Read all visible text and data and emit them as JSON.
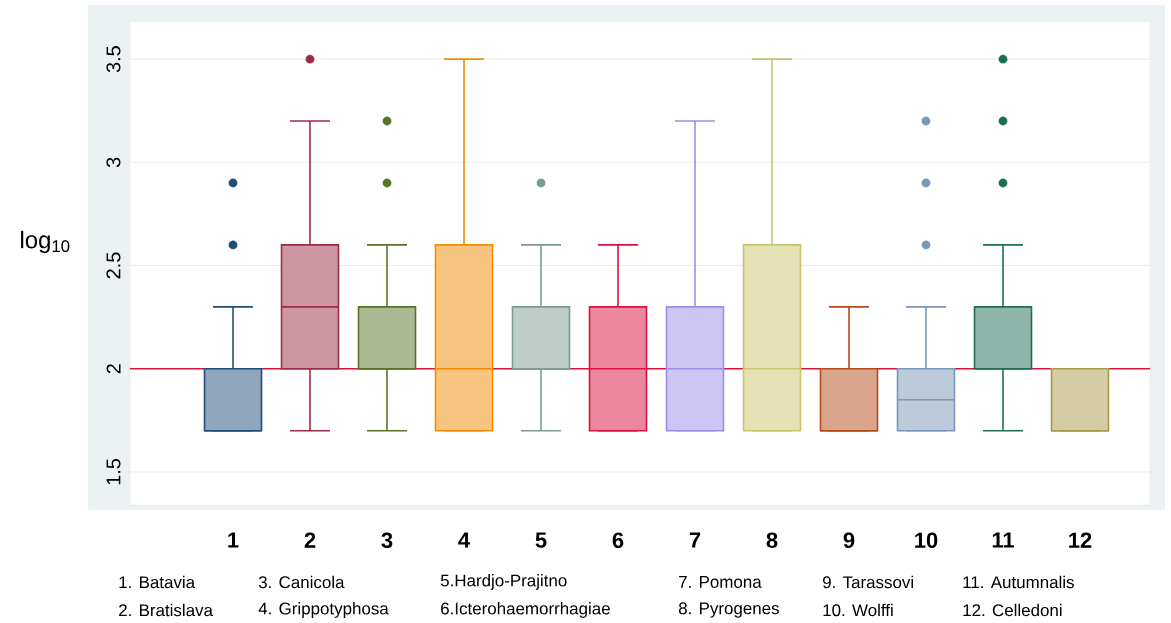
{
  "chart_data": {
    "type": "box",
    "ylabel": "log$_{10}$",
    "categories": [
      "1",
      "2",
      "3",
      "4",
      "5",
      "6",
      "7",
      "8",
      "9",
      "10",
      "11",
      "12"
    ],
    "colors": [
      "#1f4e79",
      "#9b2c44",
      "#587326",
      "#f28c00",
      "#7b9b91",
      "#d8123f",
      "#9b8ee8",
      "#c8c46a",
      "#b54a1a",
      "#7a96b8",
      "#1e6e55",
      "#a89a4a"
    ],
    "boxes": [
      {
        "low": 1.7,
        "q1": 1.7,
        "median": 1.7,
        "q3": 2.0,
        "high": 2.3,
        "outliers": [
          2.6,
          2.9
        ]
      },
      {
        "low": 1.7,
        "q1": 2.0,
        "median": 2.3,
        "q3": 2.6,
        "high": 3.2,
        "outliers": [
          3.5
        ]
      },
      {
        "low": 1.7,
        "q1": 2.0,
        "median": 2.0,
        "q3": 2.3,
        "high": 2.6,
        "outliers": [
          2.9,
          3.2
        ]
      },
      {
        "low": 1.7,
        "q1": 1.7,
        "median": 2.0,
        "q3": 2.6,
        "high": 3.5
      },
      {
        "low": 1.7,
        "q1": 2.0,
        "median": 2.0,
        "q3": 2.3,
        "high": 2.6,
        "outliers": [
          2.9
        ]
      },
      {
        "low": 1.7,
        "q1": 1.7,
        "median": 2.0,
        "q3": 2.3,
        "high": 2.6
      },
      {
        "low": 1.7,
        "q1": 1.7,
        "median": 2.0,
        "q3": 2.3,
        "high": 3.2
      },
      {
        "low": 1.7,
        "q1": 1.7,
        "median": 2.0,
        "q3": 2.6,
        "high": 3.5
      },
      {
        "low": 1.7,
        "q1": 1.7,
        "median": 1.7,
        "q3": 2.0,
        "high": 2.3
      },
      {
        "low": 1.7,
        "q1": 1.7,
        "median": 1.85,
        "q3": 2.0,
        "high": 2.3,
        "outliers": [
          2.6,
          2.9,
          3.2
        ]
      },
      {
        "low": 1.7,
        "q1": 2.0,
        "median": 2.0,
        "q3": 2.3,
        "high": 2.6,
        "outliers": [
          2.9,
          3.2,
          3.5
        ]
      },
      {
        "low": 1.7,
        "q1": 1.7,
        "median": 1.7,
        "q3": 2.0,
        "high": 2.0
      }
    ],
    "ylim": [
      1.34,
      3.68
    ],
    "yticks": [
      1.5,
      2,
      2.5,
      3,
      3.5
    ],
    "grid": "y",
    "ref_lines": [
      {
        "axis": "y",
        "value": 2,
        "color": "#d6123f"
      }
    ],
    "annotations": [
      "1. Batavia",
      "2. Bratislava",
      "3. Canicola",
      "4. Grippotyphosa",
      "5.Hardjo-Prajitno",
      "6.Icterohaemorrhagiae",
      "7. Pomona",
      "8. Pyrogenes",
      "9. Tarassovi",
      "10. Wolffi",
      "11.  Autumnalis",
      "12. Celledoni"
    ]
  }
}
